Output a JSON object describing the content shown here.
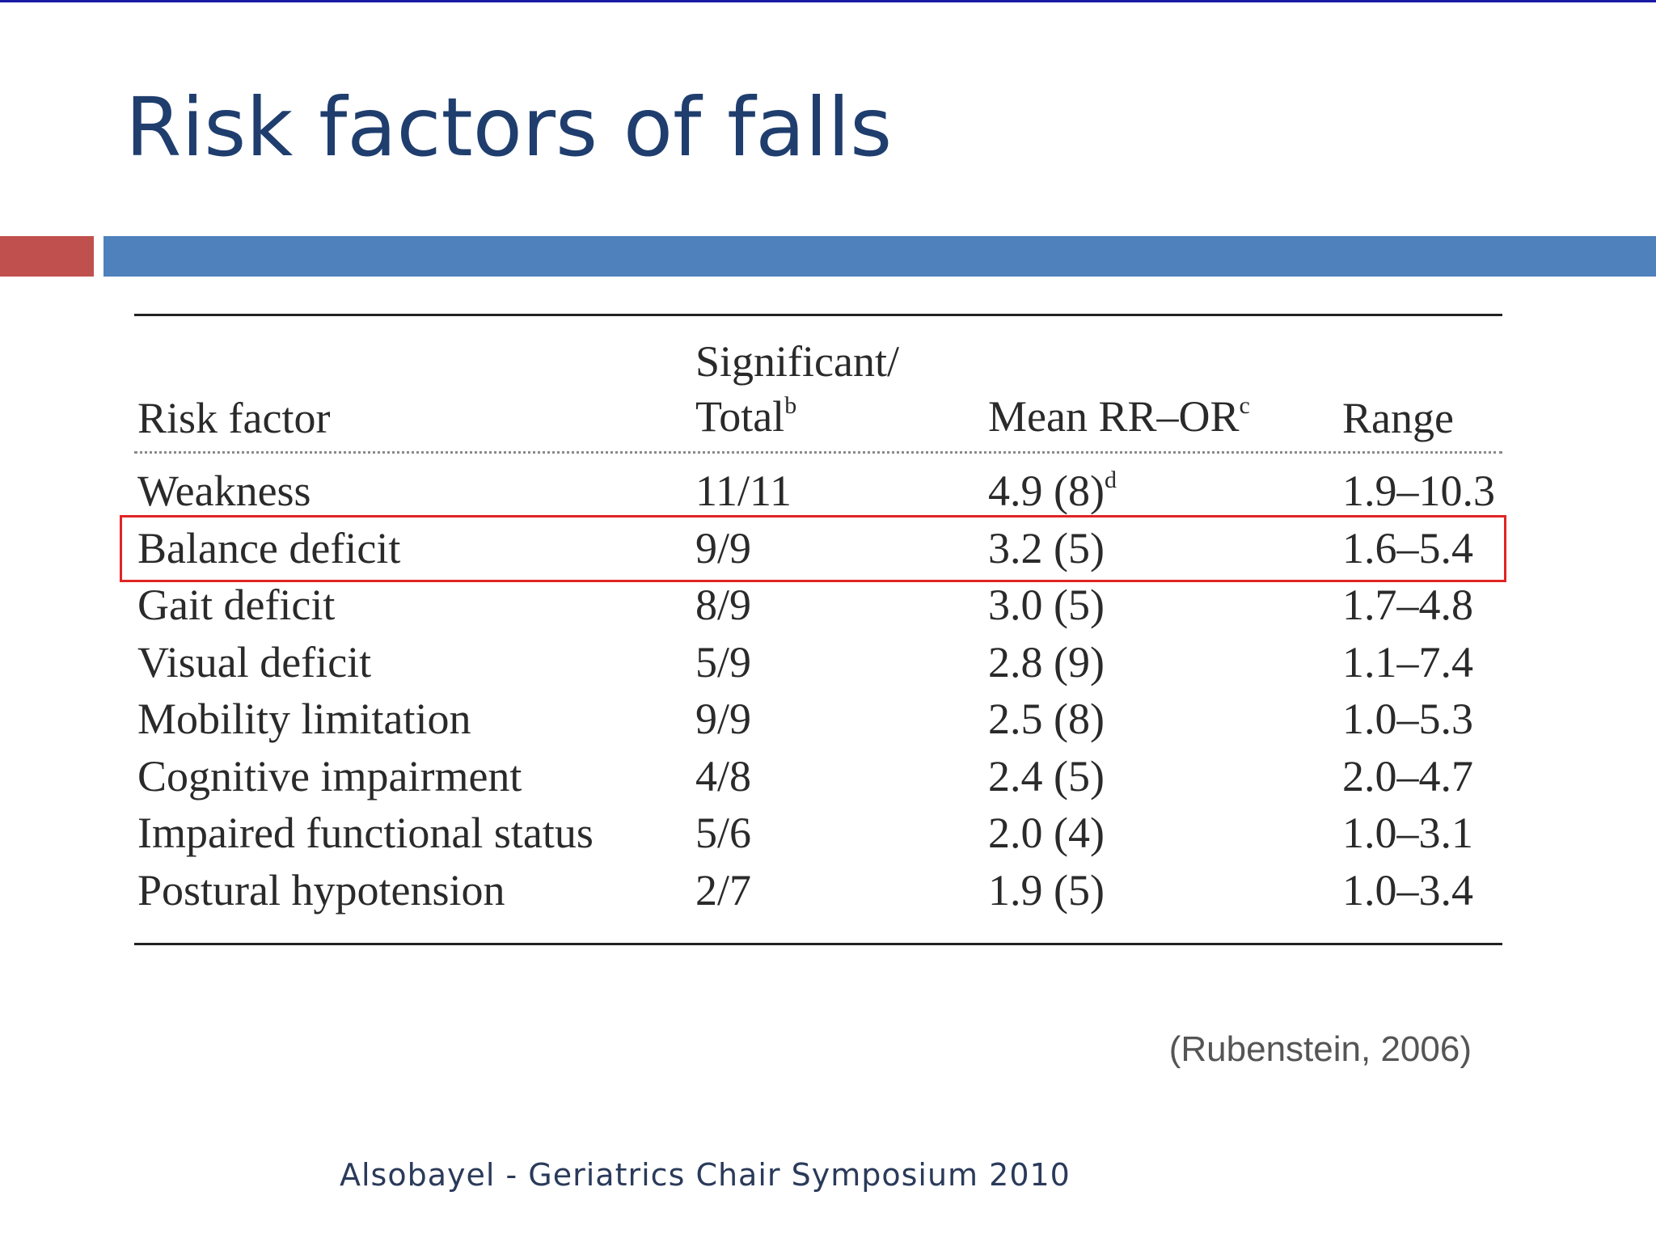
{
  "slide": {
    "title": "Risk factors of falls",
    "citation": "(Rubenstein, 2006)",
    "footer": "Alsobayel - Geriatrics Chair Symposium 2010"
  },
  "table": {
    "headers": {
      "risk_factor": "Risk factor",
      "significant_line1": "Significant/",
      "significant_line2": "Total",
      "significant_sup": "b",
      "mean": "Mean RR–OR",
      "mean_sup": "c",
      "range": "Range"
    },
    "rows": [
      {
        "factor": "Weakness",
        "sig": "11/11",
        "mean": "4.9 (8)",
        "mean_sup": "d",
        "range": "1.9–10.3"
      },
      {
        "factor": "Balance deficit",
        "sig": "9/9",
        "mean": "3.2 (5)",
        "range": "1.6–5.4",
        "highlighted": true
      },
      {
        "factor": "Gait deficit",
        "sig": "8/9",
        "mean": "3.0 (5)",
        "range": "1.7–4.8"
      },
      {
        "factor": "Visual deficit",
        "sig": "5/9",
        "mean": "2.8 (9)",
        "range": "1.1–7.4"
      },
      {
        "factor": "Mobility limitation",
        "sig": "9/9",
        "mean": "2.5 (8)",
        "range": "1.0–5.3"
      },
      {
        "factor": "Cognitive impairment",
        "sig": "4/8",
        "mean": "2.4 (5)",
        "range": "2.0–4.7"
      },
      {
        "factor": "Impaired functional status",
        "sig": "5/6",
        "mean": "2.0 (4)",
        "range": "1.0–3.1"
      },
      {
        "factor": "Postural hypotension",
        "sig": "2/7",
        "mean": "1.9 (5)",
        "range": "1.0–3.4"
      }
    ]
  },
  "colors": {
    "title": "#1f3e6e",
    "accent_red": "#c0504d",
    "accent_blue": "#4f81bd",
    "highlight_box": "#e02424"
  }
}
